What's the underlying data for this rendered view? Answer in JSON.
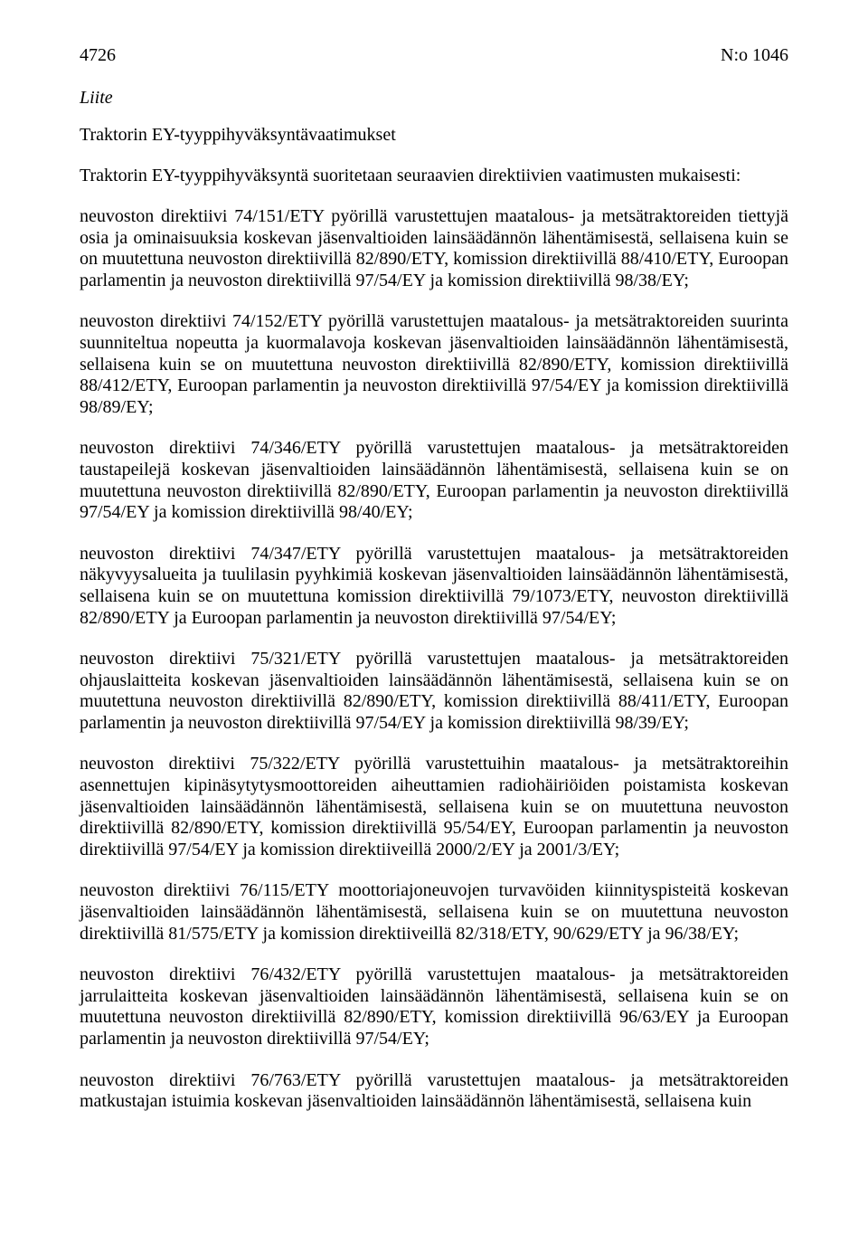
{
  "header": {
    "page_number": "4726",
    "doc_number": "N:o 1046"
  },
  "liite": "Liite",
  "title": "Traktorin EY-tyyppihyväksyntävaatimukset",
  "intro": "Traktorin EY-tyyppihyväksyntä suoritetaan seuraavien direktiivien vaatimusten mukaisesti:",
  "paras": {
    "p1": "neuvoston direktiivi 74/151/ETY pyörillä varustettujen maatalous- ja metsätraktoreiden tiettyjä osia ja ominaisuuksia koskevan jäsenvaltioiden lainsäädännön lähentämisestä, sellaisena kuin se on muutettuna neuvoston direktiivillä 82/890/ETY, komission direktiivillä 88/410/ETY, Euroopan parlamentin ja neuvoston direktiivillä 97/54/EY ja komission direktiivillä 98/38/EY;",
    "p2": "neuvoston direktiivi 74/152/ETY pyörillä varustettujen maatalous- ja metsätraktoreiden suurinta suunniteltua nopeutta ja kuormalavoja koskevan jäsenvaltioiden lainsäädännön lähentämisestä, sellaisena kuin se on muutettuna neuvoston direktiivillä 82/890/ETY, komission direktiivillä 88/412/ETY, Euroopan parlamentin ja neuvoston direktiivillä 97/54/EY ja komission direktiivillä 98/89/EY;",
    "p3": "neuvoston direktiivi 74/346/ETY pyörillä varustettujen maatalous- ja metsätraktoreiden taustapeilejä koskevan jäsenvaltioiden lainsäädännön lähentämisestä, sellaisena kuin se on muutettuna neuvoston direktiivillä 82/890/ETY, Euroopan parlamentin ja neuvoston direktiivillä 97/54/EY ja komission direktiivillä 98/40/EY;",
    "p4": "neuvoston direktiivi 74/347/ETY pyörillä varustettujen maatalous- ja metsätraktoreiden näkyvyysalueita ja tuulilasin pyyhkimiä koskevan jäsenvaltioiden lainsäädännön lähentämisestä, sellaisena kuin se on muutettuna komission direktiivillä 79/1073/ETY, neuvoston direktiivillä 82/890/ETY ja Euroopan parlamentin ja neuvoston direktiivillä 97/54/EY;",
    "p5": "neuvoston direktiivi 75/321/ETY pyörillä varustettujen maatalous- ja metsätraktoreiden ohjauslaitteita koskevan jäsenvaltioiden lainsäädännön lähentämisestä, sellaisena kuin se on muutettuna neuvoston direktiivillä 82/890/ETY, komission direktiivillä 88/411/ETY, Euroopan parlamentin ja neuvoston direktiivillä 97/54/EY ja komission direktiivillä 98/39/EY;",
    "p6": "neuvoston direktiivi 75/322/ETY pyörillä varustettuihin maatalous- ja metsätraktoreihin asennettujen kipinäsytytysmoottoreiden aiheuttamien radiohäiriöiden poistamista koskevan jäsenvaltioiden lainsäädännön lähentämisestä, sellaisena kuin se on muutettuna neuvoston direktiivillä 82/890/ETY, komission direktiivillä 95/54/EY, Euroopan parlamentin ja neuvoston direktiivillä 97/54/EY ja komission direktiiveillä 2000/2/EY ja 2001/3/EY;",
    "p7": "neuvoston direktiivi 76/115/ETY moottoriajoneuvojen turvavöiden kiinnityspisteitä koskevan jäsenvaltioiden lainsäädännön lähentämisestä, sellaisena kuin se on muutettuna neuvoston direktiivillä 81/575/ETY ja komission direktiiveillä 82/318/ETY, 90/629/ETY ja 96/38/EY;",
    "p8": "neuvoston direktiivi 76/432/ETY pyörillä varustettujen maatalous- ja metsätraktoreiden jarrulaitteita koskevan jäsenvaltioiden lainsäädännön lähentämisestä, sellaisena kuin se on muutettuna neuvoston direktiivillä 82/890/ETY, komission direktiivillä 96/63/EY ja Euroopan parlamentin ja neuvoston direktiivillä 97/54/EY;",
    "p9": "neuvoston direktiivi 76/763/ETY pyörillä varustettujen maatalous- ja metsätraktoreiden matkustajan istuimia koskevan jäsenvaltioiden lainsäädännön lähentämisestä, sellaisena kuin"
  }
}
